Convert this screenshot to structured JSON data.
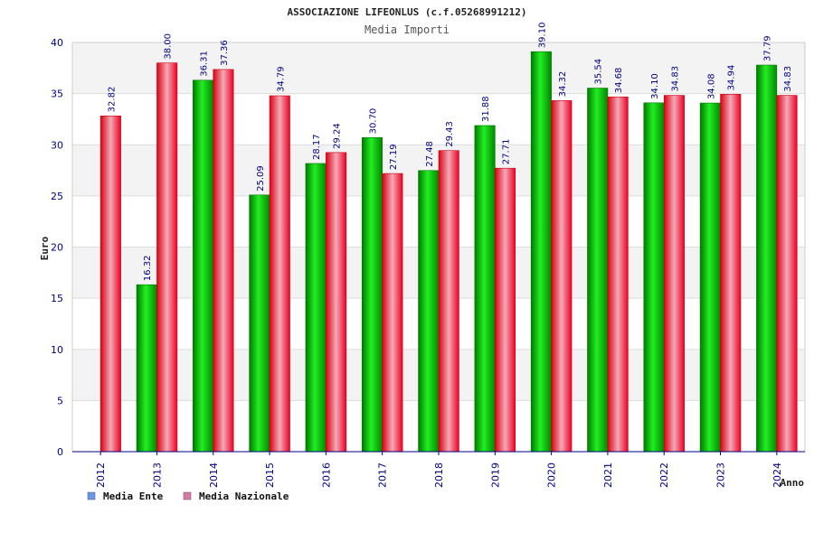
{
  "chart_data": {
    "type": "bar",
    "title": "ASSOCIAZIONE LIFEONLUS (c.f.05268991212)",
    "subtitle": "Media Importi",
    "xlabel": "Anno",
    "ylabel": "Euro",
    "ylim": [
      0,
      40
    ],
    "yticks": [
      0,
      5,
      10,
      15,
      20,
      25,
      30,
      35,
      40
    ],
    "grid": true,
    "legend_position": "bottom-left",
    "categories": [
      "2012",
      "2013",
      "2014",
      "2015",
      "2016",
      "2017",
      "2018",
      "2019",
      "2020",
      "2021",
      "2022",
      "2023",
      "2024"
    ],
    "series": [
      {
        "name": "Media Ente",
        "color": "#00cc00",
        "legend_color": "#6699ee",
        "values": [
          null,
          16.32,
          36.31,
          25.09,
          28.17,
          30.7,
          27.48,
          31.88,
          39.1,
          35.54,
          34.1,
          34.08,
          37.79
        ],
        "labels": [
          "",
          "16.32",
          "36.31",
          "25.09",
          "28.17",
          "30.70",
          "27.48",
          "31.88",
          "39.10",
          "35.54",
          "34.10",
          "34.08",
          "37.79"
        ]
      },
      {
        "name": "Media Nazionale",
        "color": "#ee0022",
        "legend_color": "#dd77aa",
        "values": [
          32.82,
          38.0,
          37.36,
          34.79,
          29.24,
          27.19,
          29.43,
          27.71,
          34.32,
          34.68,
          34.83,
          34.94,
          34.83
        ],
        "labels": [
          "32.82",
          "38.00",
          "37.36",
          "34.79",
          "29.24",
          "27.19",
          "29.43",
          "27.71",
          "34.32",
          "34.68",
          "34.83",
          "34.94",
          "34.83"
        ]
      }
    ]
  }
}
